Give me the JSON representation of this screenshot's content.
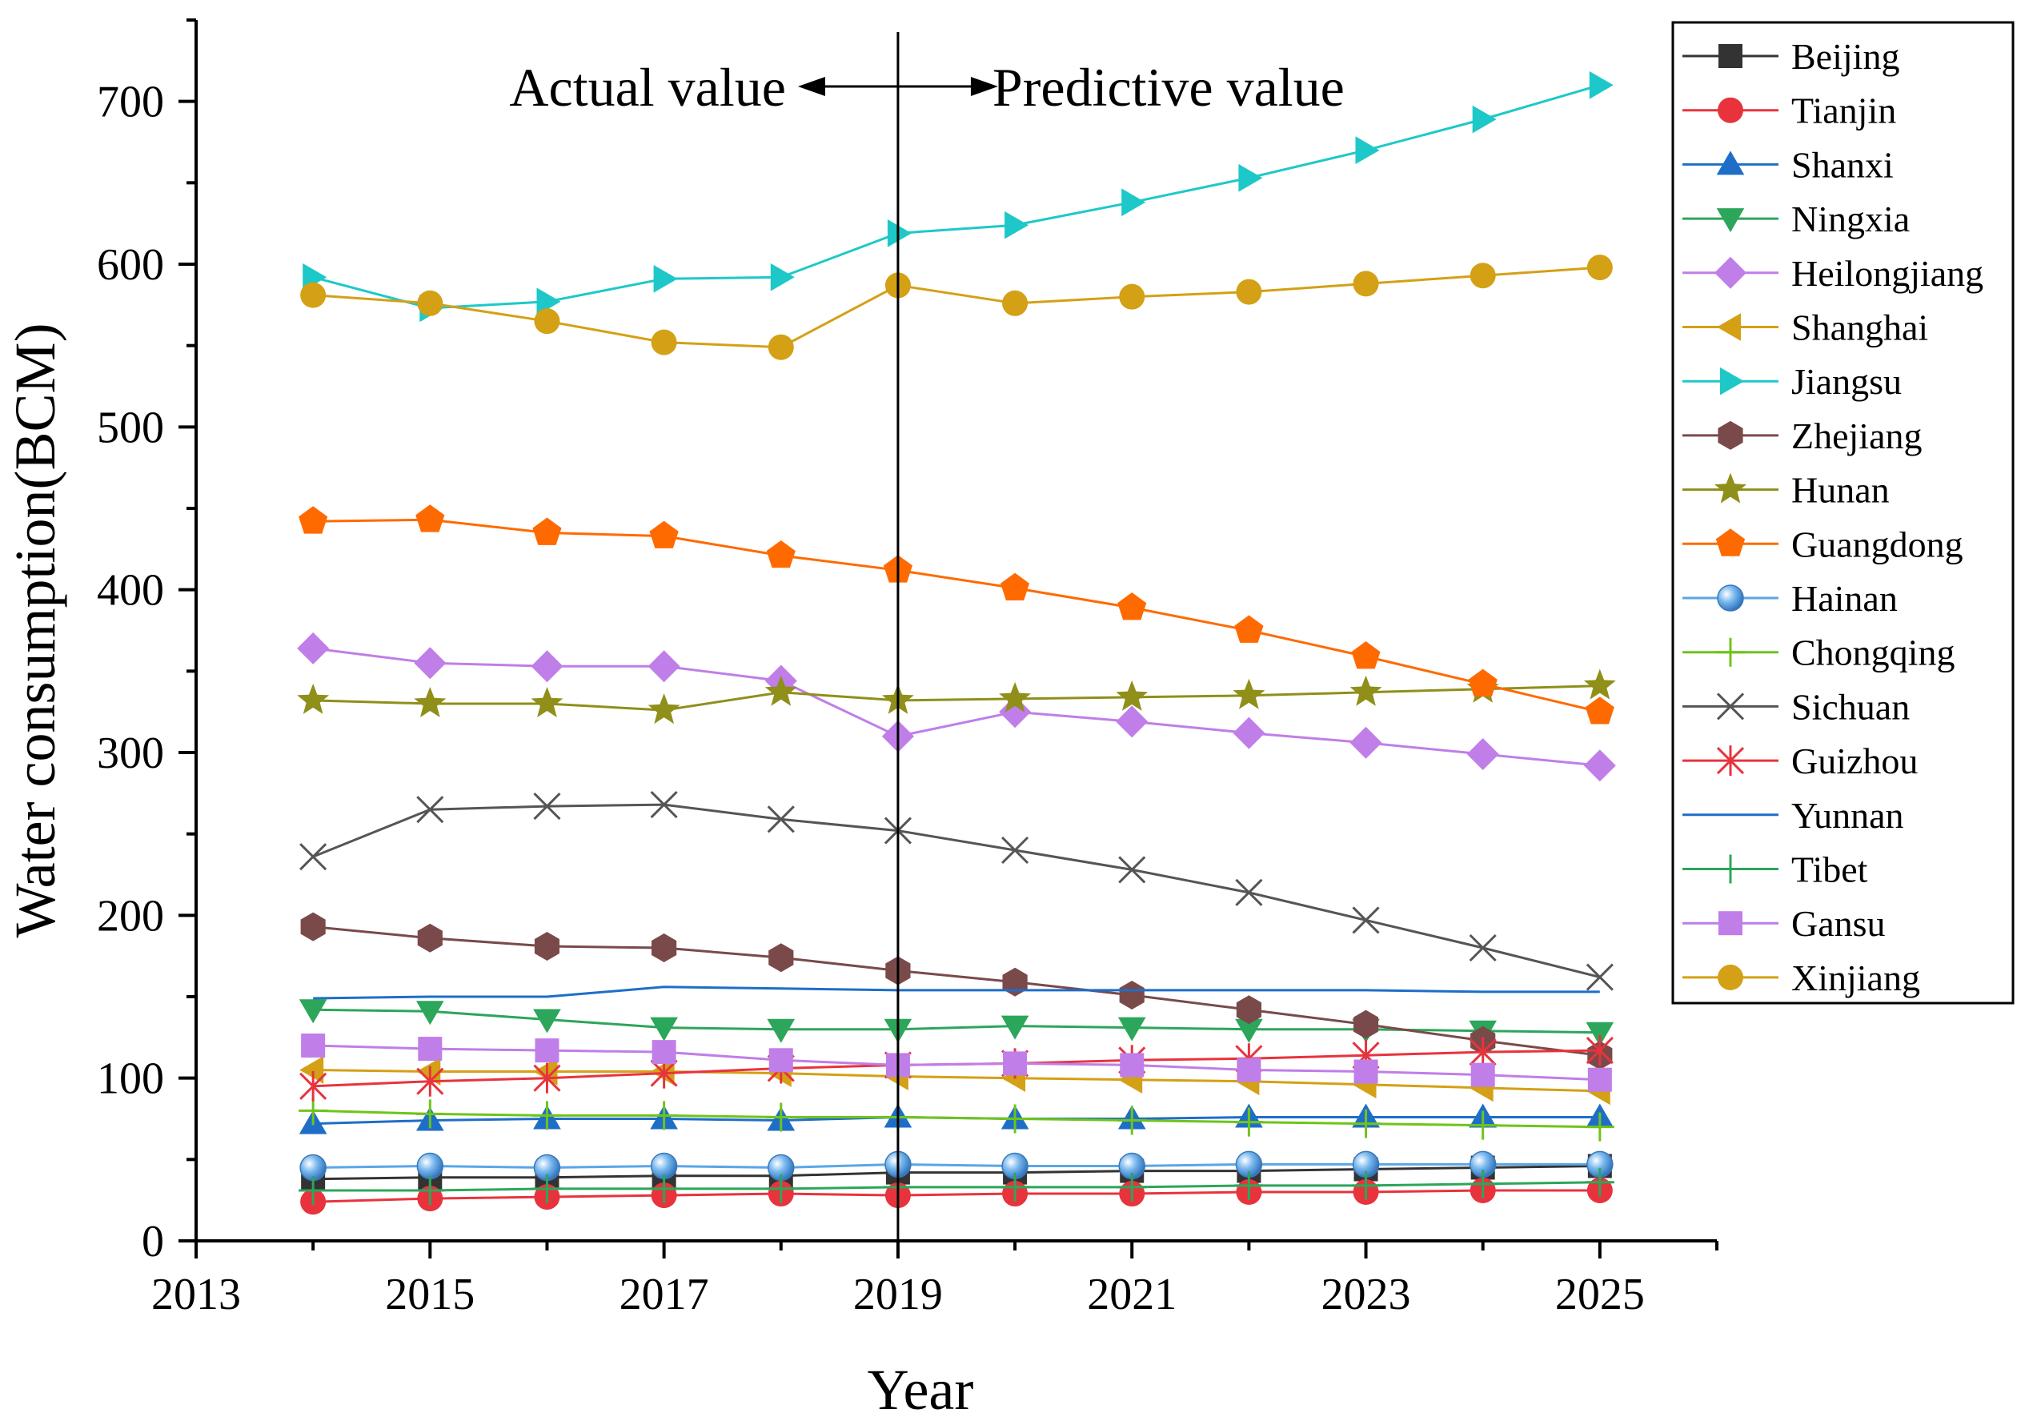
{
  "chart_data": {
    "type": "line",
    "title": "",
    "xlabel": "Year",
    "ylabel": "Water consumption(BCM)",
    "xlim": [
      2013,
      2026
    ],
    "ylim": [
      0,
      750
    ],
    "x_ticks": [
      "2013",
      "2015",
      "2017",
      "2019",
      "2021",
      "2023",
      "2025"
    ],
    "y_ticks": [
      "0",
      "100",
      "200",
      "300",
      "400",
      "500",
      "600",
      "700"
    ],
    "x": [
      2014,
      2015,
      2016,
      2017,
      2018,
      2019,
      2020,
      2021,
      2022,
      2023,
      2024,
      2025
    ],
    "divider_year": 2019,
    "annotations": {
      "left": "Actual value",
      "right": "Predictive value"
    },
    "legend_position": "right",
    "series": [
      {
        "name": "Beijing",
        "color": "#333333",
        "marker": "square",
        "values": [
          38,
          39,
          39,
          40,
          40,
          42,
          42,
          43,
          43,
          44,
          45,
          46
        ]
      },
      {
        "name": "Tianjin",
        "color": "#e8333d",
        "marker": "circle",
        "values": [
          24,
          26,
          27,
          28,
          29,
          28,
          29,
          29,
          30,
          30,
          31,
          31
        ]
      },
      {
        "name": "Shanxi",
        "color": "#1e6ec8",
        "marker": "triangle-up",
        "values": [
          72,
          74,
          75,
          75,
          74,
          76,
          75,
          75,
          76,
          76,
          76,
          76
        ]
      },
      {
        "name": "Ningxia",
        "color": "#2ca65a",
        "marker": "triangle-down",
        "values": [
          142,
          141,
          136,
          131,
          130,
          130,
          132,
          131,
          130,
          130,
          129,
          128
        ]
      },
      {
        "name": "Heilongjiang",
        "color": "#c07ee8",
        "marker": "diamond",
        "values": [
          364,
          355,
          353,
          353,
          344,
          310,
          325,
          319,
          312,
          306,
          299,
          292
        ]
      },
      {
        "name": "Shanghai",
        "color": "#d4a015",
        "marker": "triangle-left",
        "values": [
          105,
          104,
          104,
          104,
          103,
          101,
          100,
          99,
          98,
          96,
          94,
          92
        ]
      },
      {
        "name": "Jiangsu",
        "color": "#1ec8c8",
        "marker": "triangle-right",
        "values": [
          592,
          573,
          577,
          591,
          592,
          619,
          624,
          638,
          653,
          670,
          689,
          710
        ]
      },
      {
        "name": "Zhejiang",
        "color": "#7a4a4a",
        "marker": "hexagon",
        "values": [
          193,
          186,
          181,
          180,
          174,
          166,
          159,
          151,
          142,
          133,
          123,
          114
        ]
      },
      {
        "name": "Hunan",
        "color": "#8f8f1a",
        "marker": "star",
        "values": [
          332,
          330,
          330,
          326,
          337,
          332,
          333,
          334,
          335,
          337,
          339,
          341
        ]
      },
      {
        "name": "Guangdong",
        "color": "#ff6a00",
        "marker": "pentagon",
        "values": [
          442,
          443,
          435,
          433,
          421,
          412,
          401,
          389,
          375,
          359,
          342,
          325
        ]
      },
      {
        "name": "Hainan",
        "color": "#5aa6e6",
        "marker": "sphere",
        "values": [
          45,
          46,
          45,
          46,
          45,
          47,
          46,
          46,
          47,
          47,
          47,
          47
        ]
      },
      {
        "name": "Chongqing",
        "color": "#6fc41a",
        "marker": "plus",
        "values": [
          80,
          78,
          77,
          77,
          76,
          76,
          75,
          74,
          73,
          72,
          71,
          70
        ]
      },
      {
        "name": "Sichuan",
        "color": "#555555",
        "marker": "cross",
        "values": [
          236,
          265,
          267,
          268,
          259,
          252,
          240,
          228,
          214,
          197,
          180,
          162
        ]
      },
      {
        "name": "Guizhou",
        "color": "#e8333d",
        "marker": "asterisk",
        "values": [
          95,
          98,
          100,
          103,
          106,
          108,
          109,
          111,
          112,
          114,
          116,
          117
        ]
      },
      {
        "name": "Yunnan",
        "color": "#1e6ec8",
        "marker": "none",
        "values": [
          149,
          150,
          150,
          156,
          155,
          154,
          154,
          154,
          154,
          154,
          153,
          153
        ]
      },
      {
        "name": "Tibet",
        "color": "#2ca65a",
        "marker": "plus",
        "values": [
          31,
          31,
          32,
          32,
          32,
          33,
          33,
          33,
          34,
          34,
          35,
          36
        ]
      },
      {
        "name": "Gansu",
        "color": "#c07ee8",
        "marker": "square",
        "values": [
          120,
          118,
          117,
          116,
          111,
          108,
          109,
          108,
          105,
          104,
          102,
          99
        ]
      },
      {
        "name": "Xinjiang",
        "color": "#d4a015",
        "marker": "circle",
        "values": [
          581,
          576,
          565,
          552,
          549,
          587,
          576,
          580,
          583,
          588,
          593,
          598
        ]
      }
    ]
  }
}
